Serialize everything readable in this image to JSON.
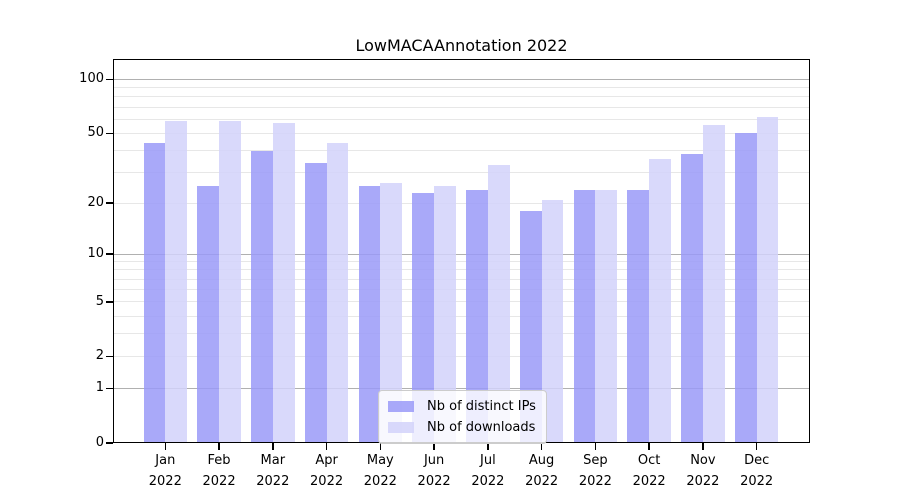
{
  "chart_data": {
    "type": "bar",
    "title": "LowMACAAnnotation 2022",
    "categories": [
      "Jan",
      "Feb",
      "Mar",
      "Apr",
      "May",
      "Jun",
      "Jul",
      "Aug",
      "Sep",
      "Oct",
      "Nov",
      "Dec"
    ],
    "x_year_label": "2022",
    "series": [
      {
        "name": "Nb of distinct IPs",
        "color": "#9a9af8",
        "opacity": 0.85,
        "values": [
          44,
          25,
          40,
          34,
          25,
          23,
          24,
          18,
          24,
          24,
          38,
          50
        ]
      },
      {
        "name": "Nb of downloads",
        "color": "#d2d2fa",
        "opacity": 0.85,
        "values": [
          59,
          59,
          57,
          44,
          26,
          25,
          33,
          21,
          24,
          36,
          56,
          62
        ]
      }
    ],
    "yscale": "log1p",
    "ylim": [
      0,
      130
    ],
    "ytick_labels": [
      "0",
      "1",
      "2",
      "5",
      "10",
      "20",
      "50",
      "100"
    ],
    "ytick_values": [
      0,
      1,
      2,
      5,
      10,
      20,
      50,
      100
    ],
    "major_gridlines": [
      1,
      10,
      100
    ],
    "minor_gridlines": [
      2,
      3,
      4,
      5,
      6,
      7,
      8,
      9,
      20,
      30,
      40,
      50,
      60,
      70,
      80,
      90
    ],
    "grid": "on",
    "legend_position": "lower-center",
    "colors": {
      "bar_ips": "#9a9af8",
      "bar_downloads": "#d2d2fa",
      "major_grid": "#b0b0b0",
      "minor_grid": "#e7e7e7",
      "axis": "#000000",
      "text": "#000000",
      "legend_border": "#cccccc"
    }
  }
}
